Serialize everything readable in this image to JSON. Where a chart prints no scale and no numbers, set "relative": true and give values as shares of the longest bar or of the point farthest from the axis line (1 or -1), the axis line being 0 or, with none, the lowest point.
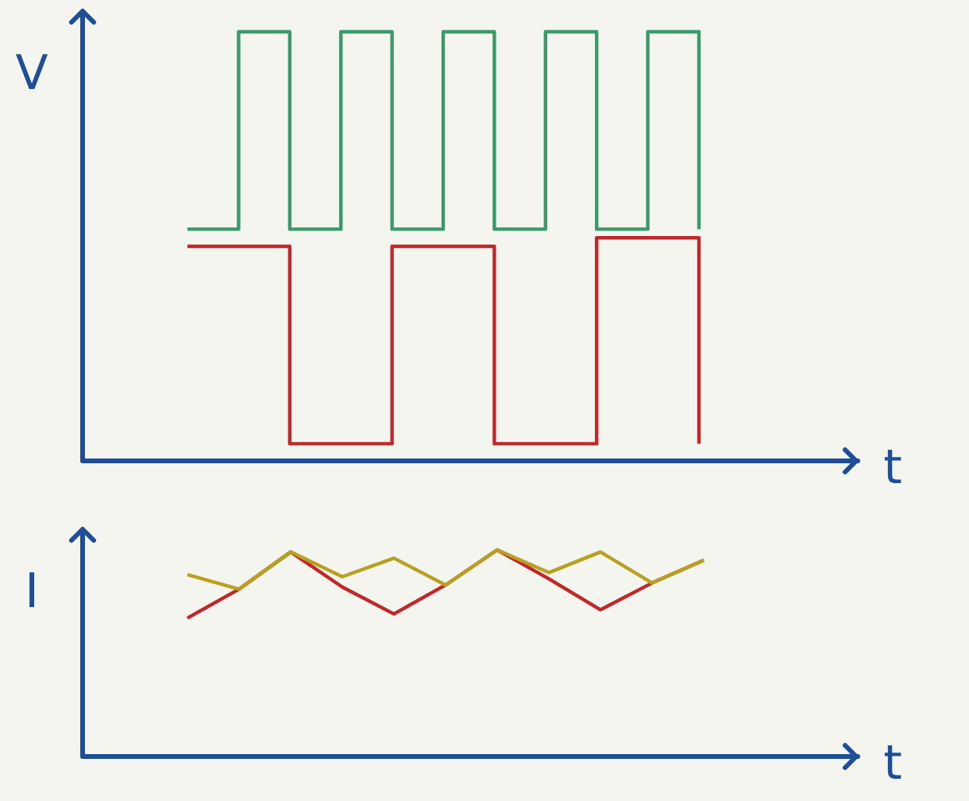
{
  "chart_data": [
    {
      "type": "step",
      "ylabel": "V",
      "xlabel": "t",
      "relative": true,
      "tick_labels": false,
      "marker": "none",
      "categories": [
        null,
        null,
        null,
        null,
        null,
        null,
        null,
        null,
        null,
        null,
        null
      ],
      "series": [
        {
          "color": "#3a9a6a",
          "values": [
            0.54,
            1,
            0.54,
            1,
            0.54,
            1,
            0.54,
            1,
            0.54,
            1,
            0.54
          ]
        },
        {
          "color": "#c0282a",
          "values": [
            0.5,
            0.5,
            0.04,
            0.04,
            0.5,
            0.5,
            0.04,
            0.04,
            0.52,
            0.52,
            0.04
          ]
        }
      ]
    },
    {
      "type": "line",
      "ylabel": "I",
      "xlabel": "t",
      "relative": true,
      "tick_labels": false,
      "marker": "none",
      "categories": [
        null,
        null,
        null,
        null,
        null,
        null,
        null,
        null,
        null,
        null,
        null
      ],
      "series": [
        {
          "color": "#b8a020",
          "values": [
            0.88,
            0.81,
            0.99,
            0.87,
            0.96,
            0.83,
            1,
            0.89,
            0.99,
            0.84,
            0.95
          ]
        },
        {
          "color": "#c0282a",
          "values": [
            0.67,
            0.81,
            0.99,
            0.82,
            0.69,
            0.83,
            1,
            0.86,
            0.71,
            0.84,
            0.95
          ]
        }
      ]
    }
  ]
}
